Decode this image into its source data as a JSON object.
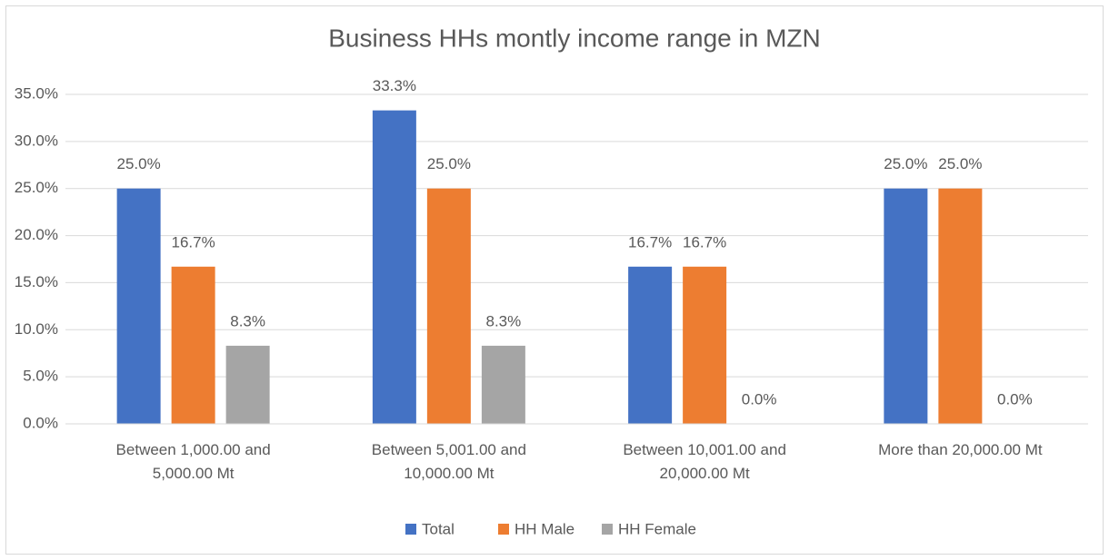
{
  "chart_data": {
    "type": "bar",
    "title": "Business HHs montly income range in MZN",
    "categories": [
      "Between 1,000.00 and 5,000.00 Mt",
      "Between 5,001.00 and 10,000.00 Mt",
      "Between 10,001.00 and 20,000.00 Mt",
      "More than 20,000.00 Mt"
    ],
    "series": [
      {
        "name": "Total",
        "color": "#4472c4",
        "values": [
          25.0,
          33.3,
          16.7,
          25.0
        ],
        "value_labels": [
          "25.0%",
          "33.3%",
          "16.7%",
          "25.0%"
        ]
      },
      {
        "name": "HH Male",
        "color": "#ed7d31",
        "values": [
          16.7,
          25.0,
          16.7,
          25.0
        ],
        "value_labels": [
          "16.7%",
          "25.0%",
          "16.7%",
          "25.0%"
        ]
      },
      {
        "name": "HH Female",
        "color": "#a5a5a5",
        "values": [
          8.3,
          8.3,
          0.0,
          0.0
        ],
        "value_labels": [
          "8.3%",
          "8.3%",
          "0.0%",
          "0.0%"
        ]
      }
    ],
    "ylim": [
      0,
      35
    ],
    "yticks": [
      {
        "value": 0,
        "label": "0.0%"
      },
      {
        "value": 5,
        "label": "5.0%"
      },
      {
        "value": 10,
        "label": "10.0%"
      },
      {
        "value": 15,
        "label": "15.0%"
      },
      {
        "value": 20,
        "label": "20.0%"
      },
      {
        "value": 25,
        "label": "25.0%"
      },
      {
        "value": 30,
        "label": "30.0%"
      },
      {
        "value": 35,
        "label": "35.0%"
      }
    ],
    "grid": true,
    "legend": "bottom"
  }
}
